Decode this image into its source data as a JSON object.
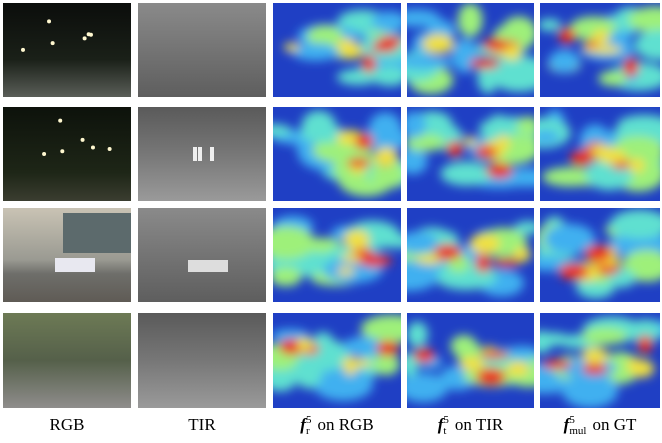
{
  "columns": [
    {
      "label": "RGB"
    },
    {
      "label": "TIR"
    },
    {
      "symbol": "f",
      "sub": "r",
      "sup": "5",
      "label": "on RGB"
    },
    {
      "symbol": "f",
      "sub": "t",
      "sup": "5",
      "label": "on TIR"
    },
    {
      "symbol": "f",
      "sub": "mul",
      "sup": "5",
      "label": "on GT"
    }
  ]
}
